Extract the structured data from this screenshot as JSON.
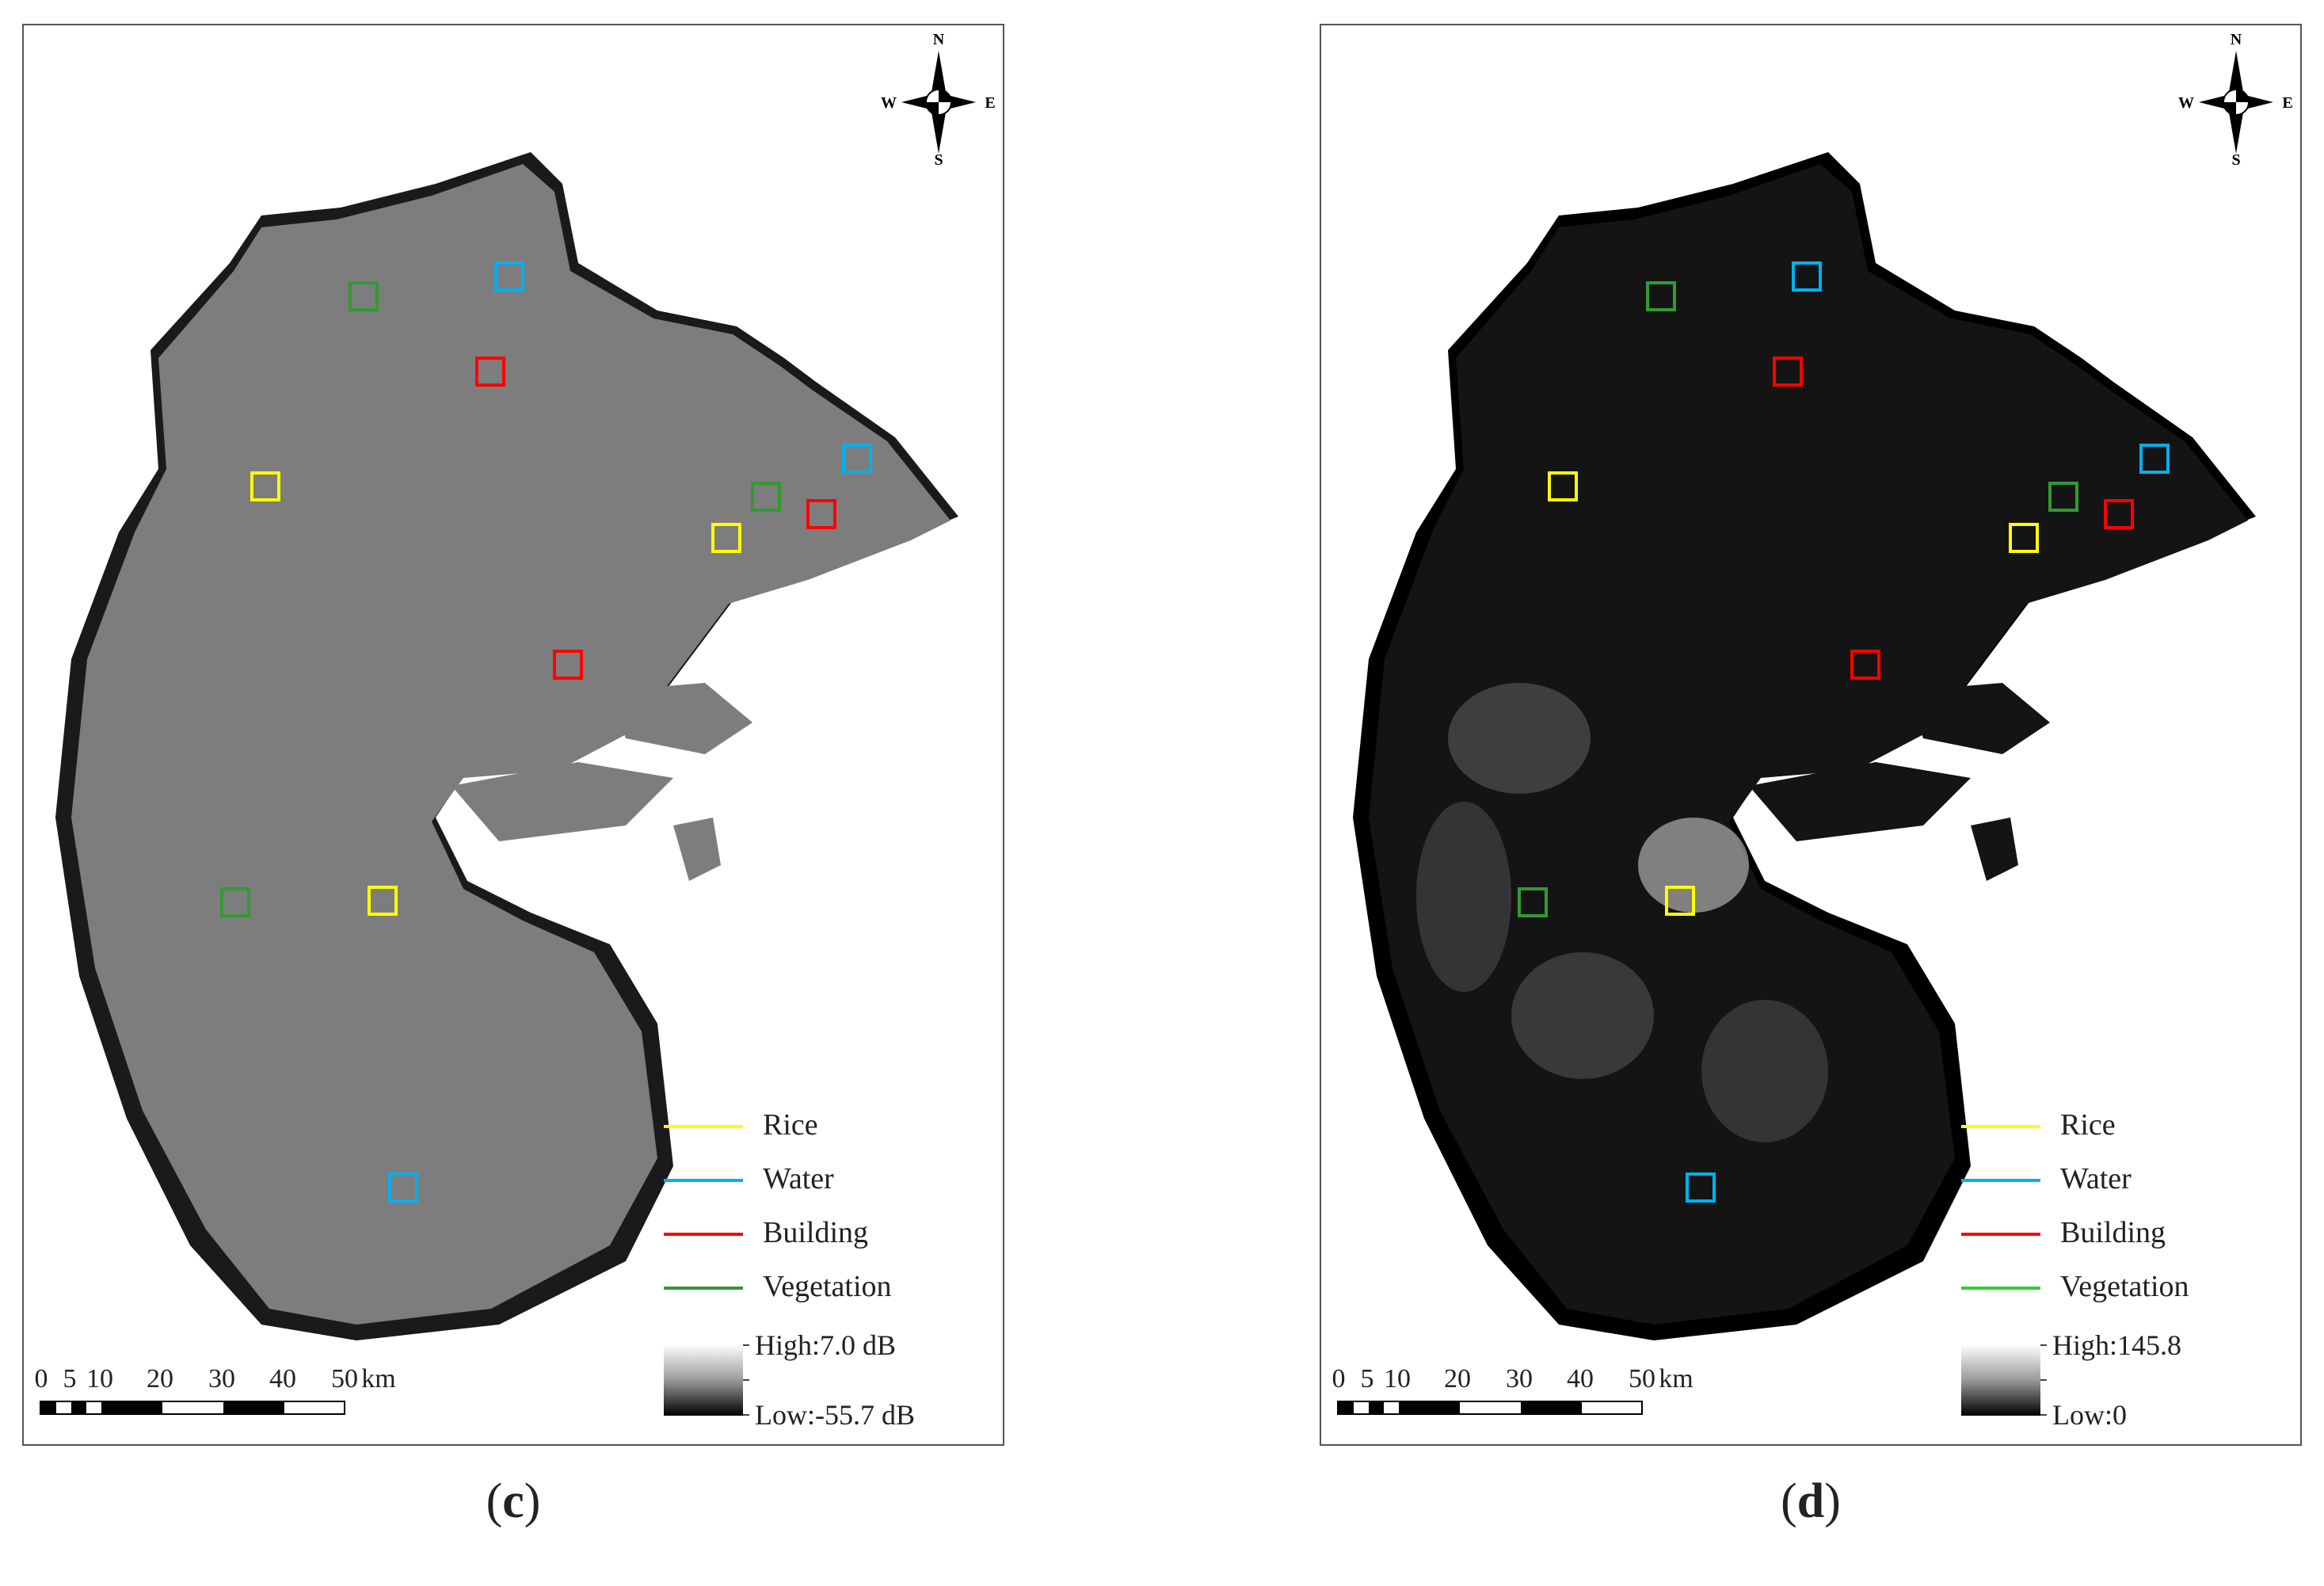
{
  "panels": [
    {
      "id": "c",
      "caption_open": "(",
      "caption_letter": "c",
      "caption_close": ")",
      "land_color": "#7d7d7d",
      "sea_color": "#1a1a1a",
      "legend": [
        {
          "label": "Rice",
          "color": "#ffff00"
        },
        {
          "label": "Water",
          "color": "#00b0f0"
        },
        {
          "label": "Building",
          "color": "#ff0000"
        },
        {
          "label": "Vegetation",
          "color": "#339933"
        }
      ],
      "ramp_high": "High:7.0 dB",
      "ramp_low": "Low:-55.7 dB"
    },
    {
      "id": "d",
      "caption_open": "(",
      "caption_letter": "d",
      "caption_close": ")",
      "land_color": "#141414",
      "sea_color": "#000000",
      "legend": [
        {
          "label": "Rice",
          "color": "#ffff00"
        },
        {
          "label": "Water",
          "color": "#00b0f0"
        },
        {
          "label": "Building",
          "color": "#ff0000"
        },
        {
          "label": "Vegetation",
          "color": "#33cc33"
        }
      ],
      "ramp_high": "High:145.8",
      "ramp_low": "Low:0"
    }
  ],
  "compass": {
    "n": "N",
    "s": "S",
    "e": "E",
    "w": "W"
  },
  "scale": {
    "ticks": [
      "0",
      "5",
      "10",
      "20",
      "30",
      "40",
      "50"
    ],
    "unit": "km"
  }
}
